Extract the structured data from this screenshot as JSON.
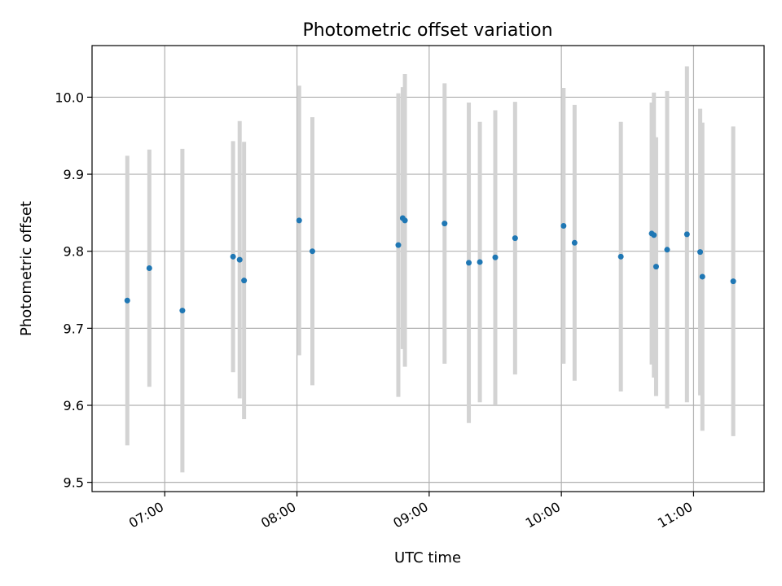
{
  "chart_data": {
    "type": "scatter",
    "title": "Photometric offset variation",
    "xlabel": "UTC time",
    "ylabel": "Photometric offset",
    "xlim": [
      "06:27",
      "11:32"
    ],
    "ylim": [
      9.488,
      10.067
    ],
    "x_ticks": [
      "07:00",
      "08:00",
      "09:00",
      "10:00",
      "11:00"
    ],
    "y_ticks": [
      "9.5",
      "9.6",
      "9.7",
      "9.8",
      "9.9",
      "10.0"
    ],
    "grid": true,
    "point_color": "#1f77b4",
    "errorbar_color": "#d3d3d3",
    "points": [
      {
        "x": "06:43",
        "y": 9.736,
        "err": 0.188
      },
      {
        "x": "06:53",
        "y": 9.778,
        "err": 0.154
      },
      {
        "x": "07:08",
        "y": 9.723,
        "err": 0.21
      },
      {
        "x": "07:31",
        "y": 9.793,
        "err": 0.15
      },
      {
        "x": "07:34",
        "y": 9.789,
        "err": 0.18
      },
      {
        "x": "07:36",
        "y": 9.762,
        "err": 0.18
      },
      {
        "x": "08:01",
        "y": 9.84,
        "err": 0.175
      },
      {
        "x": "08:07",
        "y": 9.8,
        "err": 0.174
      },
      {
        "x": "08:46",
        "y": 9.808,
        "err": 0.197
      },
      {
        "x": "08:48",
        "y": 9.843,
        "err": 0.17
      },
      {
        "x": "08:49",
        "y": 9.84,
        "err": 0.19
      },
      {
        "x": "09:07",
        "y": 9.836,
        "err": 0.182
      },
      {
        "x": "09:18",
        "y": 9.785,
        "err": 0.208
      },
      {
        "x": "09:23",
        "y": 9.786,
        "err": 0.182
      },
      {
        "x": "09:30",
        "y": 9.792,
        "err": 0.191
      },
      {
        "x": "09:39",
        "y": 9.817,
        "err": 0.177
      },
      {
        "x": "10:01",
        "y": 9.833,
        "err": 0.179
      },
      {
        "x": "10:06",
        "y": 9.811,
        "err": 0.179
      },
      {
        "x": "10:27",
        "y": 9.793,
        "err": 0.175
      },
      {
        "x": "10:41",
        "y": 9.823,
        "err": 0.17
      },
      {
        "x": "10:42",
        "y": 9.821,
        "err": 0.185
      },
      {
        "x": "10:43",
        "y": 9.78,
        "err": 0.168
      },
      {
        "x": "10:48",
        "y": 9.802,
        "err": 0.206
      },
      {
        "x": "10:57",
        "y": 9.822,
        "err": 0.218
      },
      {
        "x": "11:03",
        "y": 9.799,
        "err": 0.186
      },
      {
        "x": "11:04",
        "y": 9.767,
        "err": 0.2
      },
      {
        "x": "11:18",
        "y": 9.761,
        "err": 0.201
      }
    ]
  }
}
